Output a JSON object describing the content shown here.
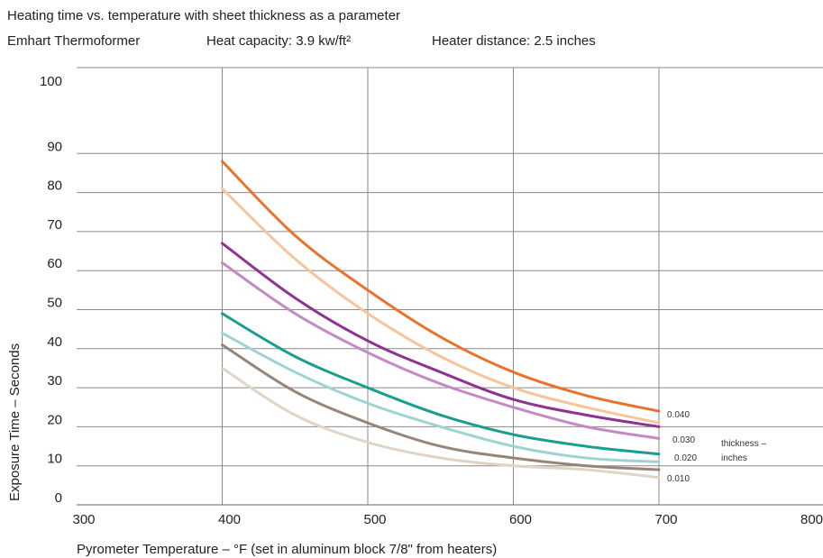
{
  "header": {
    "title": "Heating time vs. temperature with sheet thickness as a parameter",
    "machine": "Emhart Thermoformer",
    "heat_capacity": "Heat capacity: 3.9 kw/ft²",
    "heater_distance": "Heater distance: 2.5 inches"
  },
  "chart_data": {
    "type": "line",
    "xlabel": "Pyrometer Temperature – °F (set in aluminum block 7/8\" from heaters)",
    "ylabel": "Exposure Time – Seconds",
    "xlim": [
      300,
      800
    ],
    "ylim": [
      0,
      100
    ],
    "xticks": [
      300,
      400,
      500,
      600,
      700,
      800
    ],
    "yticks": [
      0,
      10,
      20,
      30,
      40,
      50,
      60,
      70,
      80,
      90,
      100
    ],
    "grid": true,
    "x": [
      400,
      450,
      500,
      550,
      600,
      650,
      700
    ],
    "series": [
      {
        "color": "#e8732e",
        "values": [
          88,
          69,
          55,
          43,
          34,
          28,
          24
        ]
      },
      {
        "color": "#f7c49b",
        "values": [
          81,
          63,
          49,
          38,
          30,
          25,
          21
        ]
      },
      {
        "color": "#8e3390",
        "values": [
          67,
          53,
          42,
          34,
          27,
          23,
          20
        ]
      },
      {
        "color": "#c48ac3",
        "values": [
          62,
          49,
          39,
          31,
          25,
          20,
          17
        ]
      },
      {
        "color": "#1a9e8f",
        "values": [
          49,
          38,
          30,
          23,
          18,
          15,
          13
        ]
      },
      {
        "color": "#9ed4cf",
        "values": [
          44,
          34,
          26,
          20,
          15,
          12,
          11
        ]
      },
      {
        "color": "#968579",
        "values": [
          41,
          29,
          21,
          15,
          12,
          10,
          9
        ]
      },
      {
        "color": "#e0d4c6",
        "values": [
          35,
          23,
          16,
          12,
          10,
          9,
          7
        ]
      }
    ],
    "annotations": {
      "label_040": "0.040",
      "label_030": "0.030",
      "label_020": "0.020",
      "label_010": "0.010",
      "legend_line1": "thickness –",
      "legend_line2": "inches"
    }
  }
}
